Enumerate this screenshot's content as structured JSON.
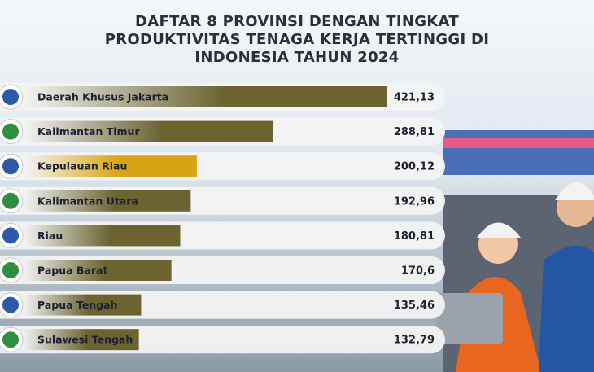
{
  "chart_data": {
    "type": "bar",
    "orientation": "horizontal",
    "title": "DAFTAR 8 PROVINSI DENGAN TINGKAT PRODUKTIVITAS TENAGA KERJA TERTINGGI DI INDONESIA TAHUN 2024",
    "categories": [
      "Daerah Khusus Jakarta",
      "Kalimantan Timur",
      "Kepulauan Riau",
      "Kalimantan Utara",
      "Riau",
      "Papua Barat",
      "Papua Tengah",
      "Sulawesi Tengah"
    ],
    "values": [
      421.13,
      288.81,
      200.12,
      192.96,
      180.81,
      170.6,
      135.46,
      132.79
    ],
    "value_labels": [
      "421,13",
      "288,81",
      "200,12",
      "192,96",
      "180,81",
      "170,6",
      "135,46",
      "132,79"
    ],
    "colors": [
      "#6b6431",
      "#6b6431",
      "#d9a514",
      "#6b6431",
      "#6b6431",
      "#6b6431",
      "#6b6431",
      "#6b6431"
    ]
  }
}
